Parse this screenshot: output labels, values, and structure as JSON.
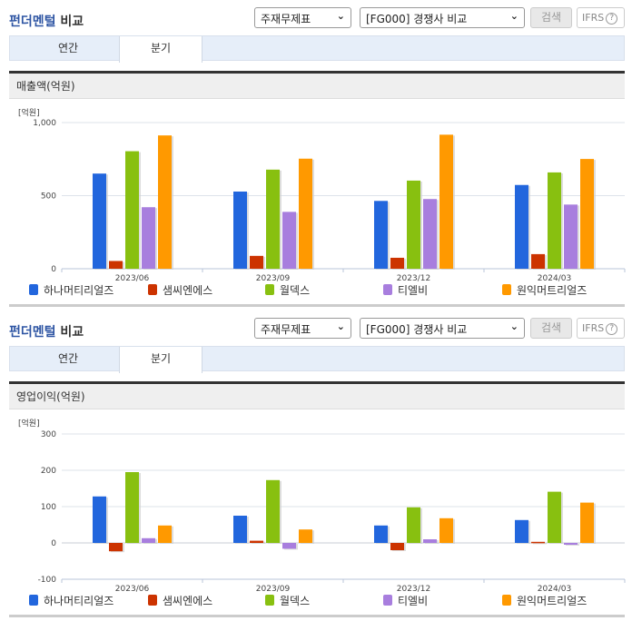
{
  "colors": {
    "accent": "#2e55a3",
    "series": [
      "#2266dd",
      "#cc3300",
      "#88c010",
      "#a87ede",
      "#ff9900"
    ]
  },
  "panels": [
    {
      "header": {
        "title_accent": "펀더멘털",
        "title_rest": " 비교",
        "select1": "주재무제표",
        "select2": "[FG000] 경쟁사 비교",
        "search_label": "검색",
        "ifrs_label": "IFRS",
        "help_glyph": "?"
      },
      "tabs": [
        {
          "label": "연간"
        },
        {
          "label": "분기"
        }
      ],
      "active_tab": 1,
      "section_title": "매출액(억원)",
      "unit_label": "[억원]"
    },
    {
      "header": {
        "title_accent": "펀더멘털",
        "title_rest": " 비교",
        "select1": "주재무제표",
        "select2": "[FG000] 경쟁사 비교",
        "search_label": "검색",
        "ifrs_label": "IFRS",
        "help_glyph": "?"
      },
      "tabs": [
        {
          "label": "연간"
        },
        {
          "label": "분기"
        }
      ],
      "active_tab": 1,
      "section_title": "영업이익(억원)",
      "unit_label": "[억원]"
    }
  ],
  "chart_data": [
    {
      "type": "bar",
      "title": "매출액(억원)",
      "ylabel": "[억원]",
      "xlabel": "",
      "categories": [
        "2023/06",
        "2023/09",
        "2023/12",
        "2024/03"
      ],
      "yticks": [
        "0",
        "500",
        "1,000"
      ],
      "ylim": [
        0,
        1000
      ],
      "grid": true,
      "legend_position": "bottom",
      "series": [
        {
          "name": "하나머티리얼즈",
          "values": [
            651,
            528,
            464,
            573
          ]
        },
        {
          "name": "샘씨엔에스",
          "values": [
            53,
            88,
            75,
            100
          ]
        },
        {
          "name": "월덱스",
          "values": [
            804,
            678,
            603,
            659
          ]
        },
        {
          "name": "티엘비",
          "values": [
            421,
            389,
            477,
            439
          ]
        },
        {
          "name": "원익머트리얼즈",
          "values": [
            912,
            753,
            917,
            751
          ]
        }
      ]
    },
    {
      "type": "bar",
      "title": "영업이익(억원)",
      "ylabel": "[억원]",
      "xlabel": "",
      "categories": [
        "2023/06",
        "2023/09",
        "2023/12",
        "2024/03"
      ],
      "yticks": [
        "-100",
        "0",
        "100",
        "200",
        "300"
      ],
      "ylim": [
        -100,
        300
      ],
      "grid": true,
      "legend_position": "bottom",
      "series": [
        {
          "name": "하나머티리얼즈",
          "values": [
            128,
            75,
            48,
            63
          ]
        },
        {
          "name": "샘씨엔에스",
          "values": [
            -23,
            6,
            -20,
            3
          ]
        },
        {
          "name": "월덱스",
          "values": [
            195,
            173,
            98,
            141
          ]
        },
        {
          "name": "티엘비",
          "values": [
            13,
            -16,
            10,
            -5
          ]
        },
        {
          "name": "원익머트리얼즈",
          "values": [
            48,
            37,
            68,
            111
          ]
        }
      ]
    }
  ]
}
